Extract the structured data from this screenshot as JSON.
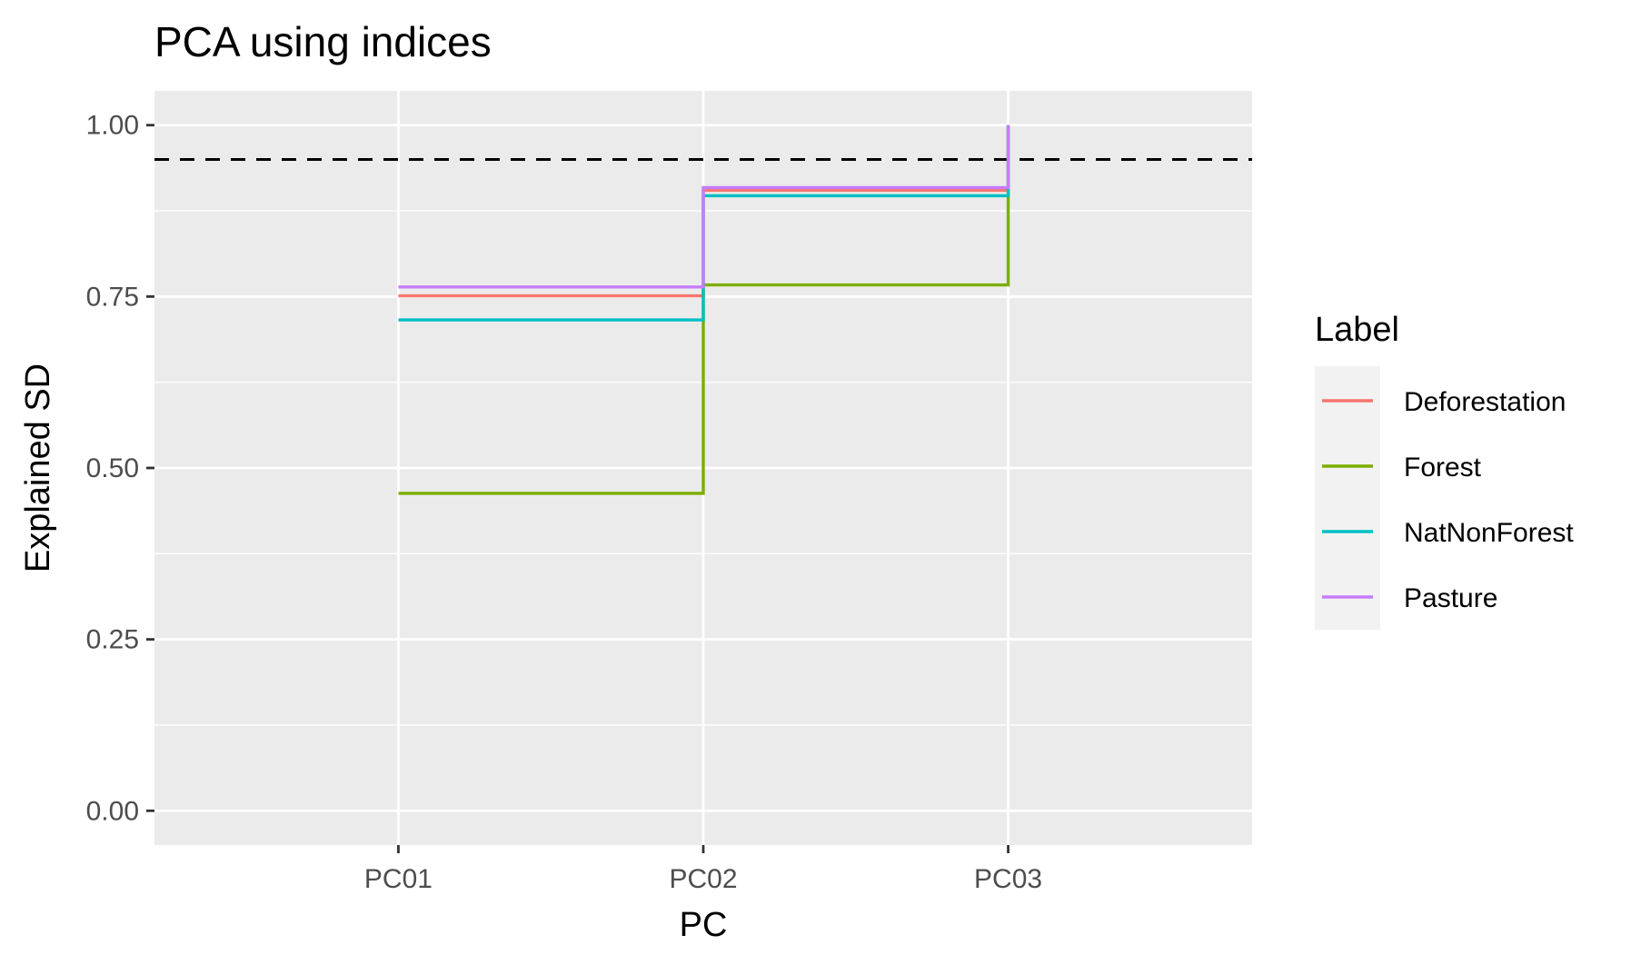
{
  "chart_data": {
    "type": "line",
    "title": "PCA using indices",
    "xlabel": "PC",
    "ylabel": "Explained SD",
    "categories": [
      "PC01",
      "PC02",
      "PC03"
    ],
    "ylim": [
      -0.05,
      1.05
    ],
    "yticks": [
      0.0,
      0.25,
      0.5,
      0.75,
      1.0
    ],
    "ytick_labels": [
      "0.00",
      "0.25",
      "0.50",
      "0.75",
      "1.00"
    ],
    "grid": true,
    "step": "hv",
    "reference_line": {
      "y": 0.95,
      "style": "dashed",
      "color": "#000000"
    },
    "legend": {
      "title": "Label",
      "position": "right"
    },
    "series": [
      {
        "name": "Deforestation",
        "color": "#F8766D",
        "values": [
          0.751,
          0.905,
          1.0
        ]
      },
      {
        "name": "Forest",
        "color": "#7CAE00",
        "values": [
          0.463,
          0.767,
          1.0
        ]
      },
      {
        "name": "NatNonForest",
        "color": "#00BFC4",
        "values": [
          0.716,
          0.897,
          1.0
        ]
      },
      {
        "name": "Pasture",
        "color": "#C77CFF",
        "values": [
          0.764,
          0.909,
          1.0
        ]
      }
    ]
  }
}
